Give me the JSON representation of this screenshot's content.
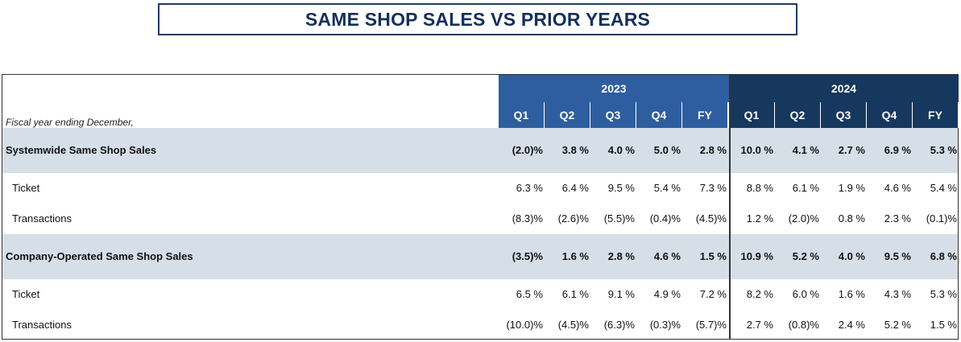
{
  "title": "SAME SHOP SALES VS PRIOR YEARS",
  "table": {
    "fiscal_label": "Fiscal year ending December,",
    "year_2023": "2023",
    "year_2024": "2024",
    "quarters_2023": [
      "Q1",
      "Q2",
      "Q3",
      "Q4",
      "FY"
    ],
    "quarters_2024": [
      "Q1",
      "Q2",
      "Q3",
      "Q4",
      "FY"
    ],
    "rows": [
      {
        "label": "Systemwide Same Shop Sales",
        "bold": true,
        "values": [
          "(2.0)%",
          "3.8 %",
          "4.0 %",
          "5.0 %",
          "2.8 %",
          "10.0 %",
          "4.1 %",
          "2.7 %",
          "6.9 %",
          "5.3 %"
        ]
      },
      {
        "label": "Ticket",
        "bold": false,
        "values": [
          "6.3 %",
          "6.4 %",
          "9.5 %",
          "5.4 %",
          "7.3 %",
          "8.8 %",
          "6.1 %",
          "1.9 %",
          "4.6 %",
          "5.4 %"
        ]
      },
      {
        "label": "Transactions",
        "bold": false,
        "values": [
          "(8.3)%",
          "(2.6)%",
          "(5.5)%",
          "(0.4)%",
          "(4.5)%",
          "1.2 %",
          "(2.0)%",
          "0.8 %",
          "2.3 %",
          "(0.1)%"
        ]
      },
      {
        "label": "Company-Operated Same Shop Sales",
        "bold": true,
        "values": [
          "(3.5)%",
          "1.6 %",
          "2.8 %",
          "4.6 %",
          "1.5 %",
          "10.9 %",
          "5.2 %",
          "4.0 %",
          "9.5 %",
          "6.8 %"
        ]
      },
      {
        "label": "Ticket",
        "bold": false,
        "values": [
          "6.5 %",
          "6.1 %",
          "9.1 %",
          "4.9 %",
          "7.2 %",
          "8.2 %",
          "6.0 %",
          "1.6 %",
          "4.3 %",
          "5.3 %"
        ]
      },
      {
        "label": "Transactions",
        "bold": false,
        "values": [
          "(10.0)%",
          "(4.5)%",
          "(6.3)%",
          "(0.3)%",
          "(5.7)%",
          "2.7 %",
          "(0.8)%",
          "2.4 %",
          "5.2 %",
          "1.5 %"
        ]
      }
    ]
  }
}
